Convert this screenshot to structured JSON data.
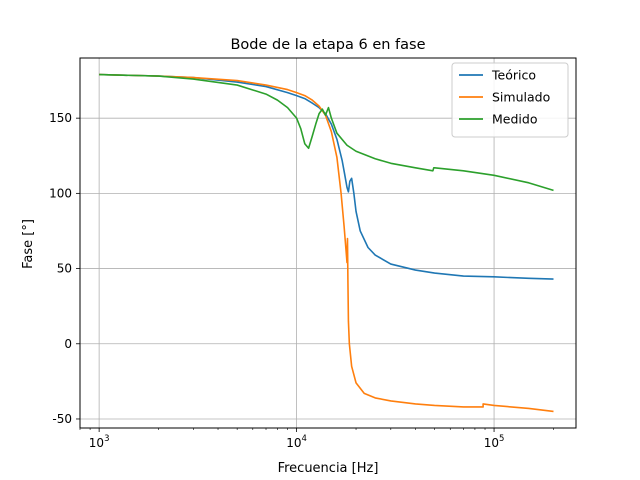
{
  "chart_data": {
    "type": "line",
    "title": "Bode de la etapa 6 en fase",
    "xlabel": "Frecuencia [Hz]",
    "ylabel": "Fase [°]",
    "xscale": "log",
    "xlim": [
      800,
      260000
    ],
    "ylim": [
      -56,
      190
    ],
    "grid": true,
    "legend_position": "top-right",
    "x_ticks": [
      {
        "value": 1000,
        "base": "10",
        "exp": "3"
      },
      {
        "value": 10000,
        "base": "10",
        "exp": "4"
      },
      {
        "value": 100000,
        "base": "10",
        "exp": "5"
      }
    ],
    "y_ticks": [
      -50,
      0,
      50,
      100,
      150
    ],
    "series": [
      {
        "name": "Teórico",
        "color": "#1f77b4",
        "x": [
          1000,
          2000,
          3000,
          5000,
          7000,
          9000,
          10000,
          11000,
          12000,
          13000,
          14000,
          15000,
          16000,
          17000,
          17500,
          18000,
          18300,
          18600,
          19000,
          19500,
          20000,
          21000,
          23000,
          25000,
          30000,
          40000,
          50000,
          70000,
          100000,
          150000,
          200000
        ],
        "y": [
          179,
          178,
          177,
          174,
          171,
          167,
          165,
          163,
          160,
          157,
          153,
          146,
          136,
          122,
          113,
          104,
          101,
          108,
          110,
          100,
          88,
          75,
          64,
          59,
          53,
          49,
          47,
          45,
          44.5,
          43.5,
          43
        ]
      },
      {
        "name": "Simulado",
        "color": "#ff7f0e",
        "x": [
          1000,
          2000,
          3000,
          5000,
          7000,
          9000,
          10000,
          11000,
          12000,
          13000,
          14000,
          15000,
          16000,
          16800,
          17400,
          17800,
          18000,
          18100,
          18200,
          18300,
          18500,
          19000,
          20000,
          22000,
          25000,
          30000,
          40000,
          50000,
          70000,
          88000,
          88000,
          100000,
          150000,
          200000
        ],
        "y": [
          179,
          178,
          177,
          175,
          172,
          169,
          167,
          165,
          162,
          158,
          152,
          141,
          124,
          100,
          78,
          62,
          54,
          70,
          40,
          15,
          0,
          -15,
          -26,
          -33,
          -36,
          -38,
          -40,
          -41,
          -42,
          -42,
          -40,
          -41,
          -43,
          -45
        ]
      },
      {
        "name": "Medido",
        "color": "#2ca02c",
        "x": [
          1000,
          2000,
          3000,
          5000,
          7000,
          8000,
          9000,
          10000,
          10500,
          11000,
          11500,
          12000,
          12500,
          13000,
          13500,
          14000,
          14500,
          15000,
          16000,
          18000,
          20000,
          25000,
          30000,
          40000,
          49000,
          49500,
          50000,
          70000,
          100000,
          150000,
          200000
        ],
        "y": [
          179,
          178,
          176,
          172,
          166,
          162,
          157,
          150,
          143,
          133,
          130,
          138,
          146,
          153,
          156,
          152,
          157,
          150,
          140,
          132,
          128,
          123,
          120,
          117,
          115,
          117,
          117,
          115,
          112,
          107,
          102
        ]
      }
    ]
  }
}
